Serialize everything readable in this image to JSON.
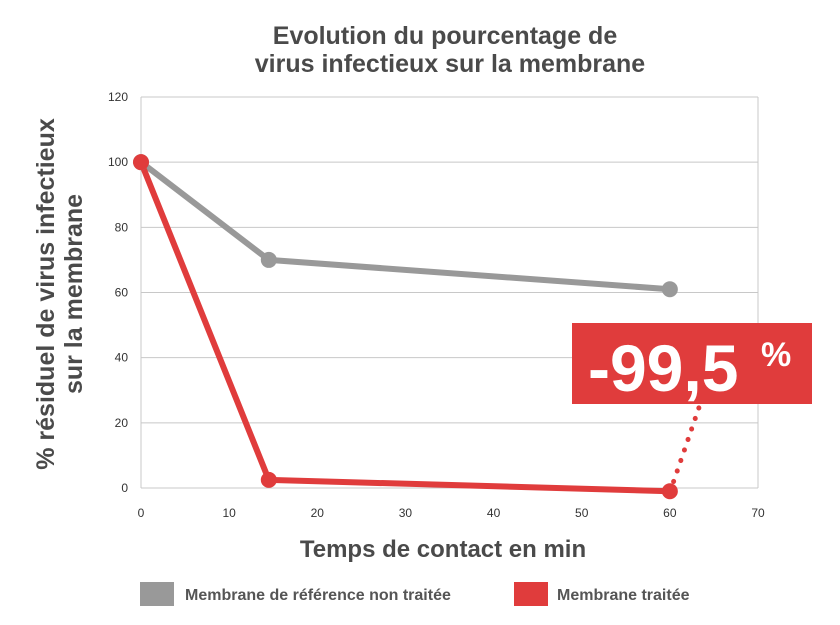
{
  "chart_data": {
    "type": "line",
    "title_lines": [
      "Evolution du pourcentage de",
      "virus infectieux sur la membrane"
    ],
    "ylabel_lines": [
      "% résiduel de virus infectieux",
      "sur la membrane"
    ],
    "xlabel": "Temps de contact en min",
    "xlim": [
      0,
      70
    ],
    "ylim": [
      0,
      120
    ],
    "x_ticks": [
      0,
      10,
      20,
      30,
      40,
      50,
      60,
      70
    ],
    "y_ticks": [
      0,
      20,
      40,
      60,
      80,
      100,
      120
    ],
    "grid": true,
    "legend_position": "bottom",
    "series": [
      {
        "name": "Membrane de référence non traitée",
        "color": "#999999",
        "x": [
          0,
          14.5,
          60
        ],
        "y": [
          100,
          70,
          61
        ]
      },
      {
        "name": "Membrane traitée",
        "color": "#e03c3c",
        "x": [
          0,
          14.5,
          60
        ],
        "y": [
          100,
          2.5,
          -1
        ]
      }
    ],
    "annotation": {
      "text": "-99,5",
      "suffix": "%",
      "color": "#e03c3c"
    }
  }
}
